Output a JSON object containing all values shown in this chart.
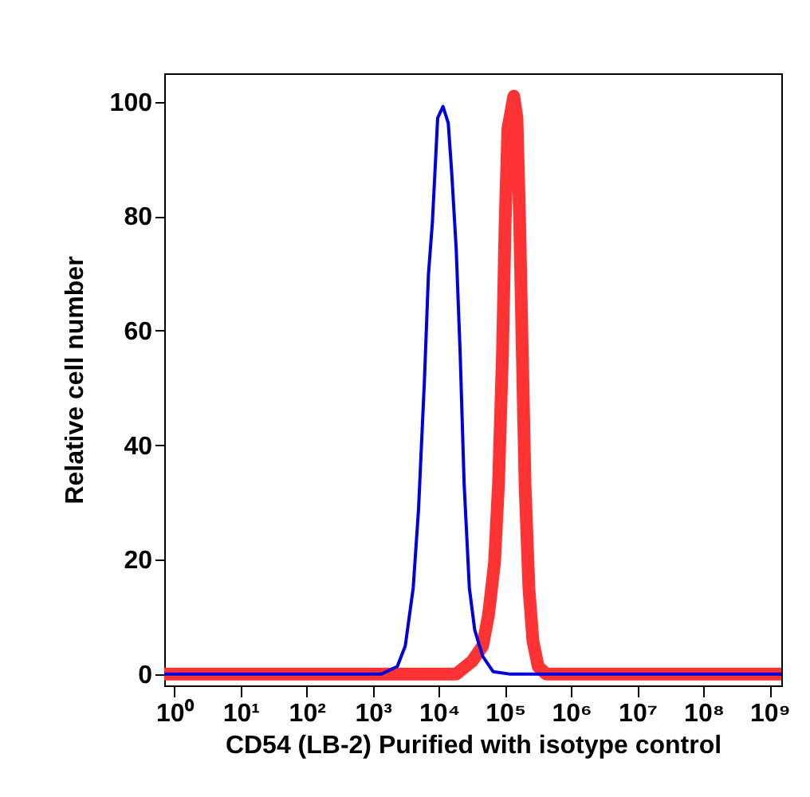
{
  "chart_data": {
    "type": "line",
    "xlabel": "CD54 (LB-2) Purified with isotype control",
    "ylabel": "Relative cell number",
    "log": "x",
    "grid": false,
    "xlim": [
      0.7,
      1500000000
    ],
    "ylim": [
      -2,
      105
    ],
    "xticks": [
      {
        "value": 1,
        "label": "10⁰"
      },
      {
        "value": 10,
        "label": "10¹"
      },
      {
        "value": 100,
        "label": "10²"
      },
      {
        "value": 1000,
        "label": "10³"
      },
      {
        "value": 10000,
        "label": "10⁴"
      },
      {
        "value": 100000,
        "label": "10⁵"
      },
      {
        "value": 1000000,
        "label": "10⁶"
      },
      {
        "value": 10000000,
        "label": "10⁷"
      },
      {
        "value": 100000000,
        "label": "10⁸"
      },
      {
        "value": 1000000000,
        "label": "10⁹"
      }
    ],
    "yticks": [
      0,
      20,
      40,
      60,
      80,
      100
    ],
    "series": [
      {
        "color": "#ff3333",
        "x": [
          0.7,
          18200,
          31600,
          45700,
          56200,
          69200,
          79400,
          91200,
          100000,
          110000,
          135000,
          151000,
          166000,
          182000,
          200000,
          229000,
          263000,
          316000,
          417000,
          1500000000
        ],
        "values": [
          0,
          0,
          2.2,
          4.9,
          10.4,
          19.5,
          33.2,
          56,
          78.9,
          95.3,
          101,
          97.2,
          78.9,
          56,
          33.2,
          15,
          5.8,
          1.3,
          0,
          0
        ]
      },
      {
        "color": "#0000dd",
        "x": [
          0.7,
          1350,
          2340,
          3090,
          4070,
          4900,
          6030,
          6920,
          7940,
          8710,
          9550,
          11500,
          13800,
          15500,
          18200,
          20900,
          24000,
          28800,
          34700,
          45700,
          66100,
          115000,
          1500000000
        ],
        "values": [
          0,
          0,
          1.3,
          4.9,
          15,
          28.7,
          51.5,
          69.8,
          78.9,
          88,
          97.2,
          99.2,
          96.3,
          88,
          74.3,
          56,
          33.2,
          15,
          7.7,
          3.1,
          0.4,
          0,
          0
        ]
      }
    ]
  }
}
